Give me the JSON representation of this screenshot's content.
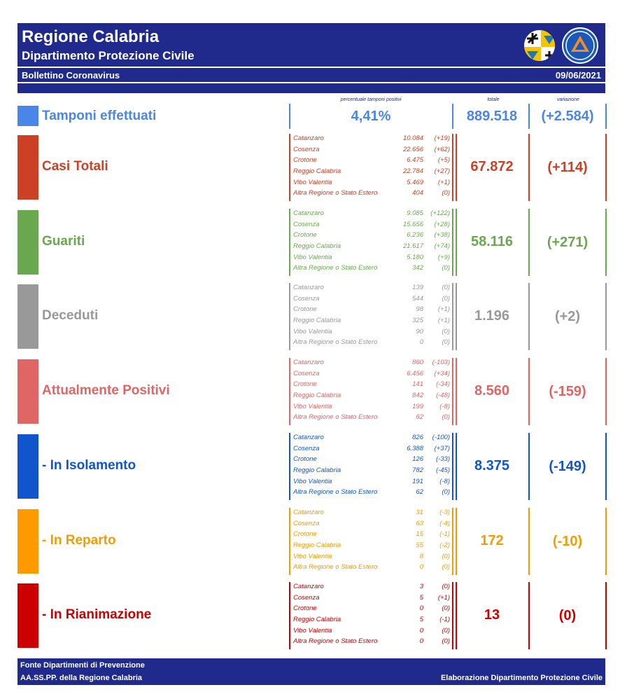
{
  "header": {
    "title": "Regione Calabria",
    "subtitle": "Dipartimento Protezione Civile",
    "bulletin": "Bollettino Coronavirus",
    "date": "09/06/2021"
  },
  "columns": {
    "percent": "percentuale tamponi positivi",
    "total": "totale",
    "variation": "variazione"
  },
  "tamponi": {
    "label": "Tamponi effettuati",
    "percent": "4,41%",
    "total": "889.518",
    "variation": "(+2.584)",
    "color": "#4a86e8"
  },
  "sections": [
    {
      "label": "Casi Totali",
      "total": "67.872",
      "variation": "(+114)",
      "color": "#cc4125",
      "swatch": "#cc4125",
      "rows": [
        {
          "p": "Catanzaro",
          "v": "10.084",
          "d": "(+19)"
        },
        {
          "p": "Cosenza",
          "v": "22.656",
          "d": "(+62)"
        },
        {
          "p": "Crotone",
          "v": "6.475",
          "d": "(+5)"
        },
        {
          "p": "Reggio Calabria",
          "v": "22.784",
          "d": "(+27)"
        },
        {
          "p": "Vibo Valentia",
          "v": "5.469",
          "d": "(+1)"
        },
        {
          "p": "Altra Regione o Stato Estero",
          "v": "404",
          "d": "(0)"
        }
      ]
    },
    {
      "label": "Guariti",
      "total": "58.116",
      "variation": "(+271)",
      "color": "#6aa84f",
      "swatch": "#6aa84f",
      "rows": [
        {
          "p": "Catanzaro",
          "v": "9.085",
          "d": "(+122)"
        },
        {
          "p": "Cosenza",
          "v": "15.656",
          "d": "(+28)"
        },
        {
          "p": "Crotone",
          "v": "6.236",
          "d": "(+38)"
        },
        {
          "p": "Reggio Calabria",
          "v": "21.617",
          "d": "(+74)"
        },
        {
          "p": "Vibo Valentia",
          "v": "5.180",
          "d": "(+9)"
        },
        {
          "p": "Altra Regione o Stato Estero",
          "v": "342",
          "d": "(0)"
        }
      ]
    },
    {
      "label": "Deceduti",
      "total": "1.196",
      "variation": "(+2)",
      "color": "#999999",
      "swatch": "#999999",
      "rows": [
        {
          "p": "Catanzaro",
          "v": "139",
          "d": "(0)"
        },
        {
          "p": "Cosenza",
          "v": "544",
          "d": "(0)"
        },
        {
          "p": "Crotone",
          "v": "98",
          "d": "(+1)"
        },
        {
          "p": "Reggio Calabria",
          "v": "325",
          "d": "(+1)"
        },
        {
          "p": "Vibo Valentia",
          "v": "90",
          "d": "(0)"
        },
        {
          "p": "Altra Regione o Stato Estero",
          "v": "0",
          "d": "(0)"
        }
      ]
    },
    {
      "label": "Attualmente Positivi",
      "total": "8.560",
      "variation": "(-159)",
      "color": "#e06666",
      "swatch": "#e06666",
      "rows": [
        {
          "p": "Catanzaro",
          "v": "860",
          "d": "(-103)"
        },
        {
          "p": "Cosenza",
          "v": "6.456",
          "d": "(+34)"
        },
        {
          "p": "Crotone",
          "v": "141",
          "d": "(-34)"
        },
        {
          "p": "Reggio Calabria",
          "v": "842",
          "d": "(-48)"
        },
        {
          "p": "Vibo Valentia",
          "v": "199",
          "d": "(-8)"
        },
        {
          "p": "Altra Regione o Stato Estero",
          "v": "62",
          "d": "(0)"
        }
      ]
    },
    {
      "label": " - In Isolamento",
      "total": "8.375",
      "variation": "(-149)",
      "color": "#1155cc",
      "swatch": "#1155cc",
      "rows": [
        {
          "p": "Catanzaro",
          "v": "826",
          "d": "(-100)"
        },
        {
          "p": "Cosenza",
          "v": "6.388",
          "d": "(+37)"
        },
        {
          "p": "Crotone",
          "v": "126",
          "d": "(-33)"
        },
        {
          "p": "Reggio Calabria",
          "v": "782",
          "d": "(-45)"
        },
        {
          "p": "Vibo Valentia",
          "v": "191",
          "d": "(-8)"
        },
        {
          "p": "Altra Regione o Stato Estero",
          "v": "62",
          "d": "(0)"
        }
      ]
    },
    {
      "label": " - In Reparto",
      "total": "172",
      "variation": "(-10)",
      "color": "#f49b00",
      "swatch": "#ff9900",
      "rows": [
        {
          "p": "Catanzaro",
          "v": "31",
          "d": "(-3)"
        },
        {
          "p": "Cosenza",
          "v": "63",
          "d": "(-4)"
        },
        {
          "p": "Crotone",
          "v": "15",
          "d": "(-1)"
        },
        {
          "p": "Reggio Calabria",
          "v": "55",
          "d": "(-2)"
        },
        {
          "p": "Vibo Valentia",
          "v": "8",
          "d": "(0)"
        },
        {
          "p": "Altra Regione o Stato Estero",
          "v": "0",
          "d": "(0)"
        }
      ]
    },
    {
      "label": " - In Rianimazione",
      "total": "13",
      "variation": "(0)",
      "color": "#cc0000",
      "swatch": "#cc0000",
      "rows": [
        {
          "p": "Catanzaro",
          "v": "3",
          "d": "(0)"
        },
        {
          "p": "Cosenza",
          "v": "5",
          "d": "(+1)"
        },
        {
          "p": "Crotone",
          "v": "0",
          "d": "(0)"
        },
        {
          "p": "Reggio Calabria",
          "v": "5",
          "d": "(-1)"
        },
        {
          "p": "Vibo Valentia",
          "v": "0",
          "d": "(0)"
        },
        {
          "p": "Altra Regione o Stato Estero",
          "v": "0",
          "d": "(0)"
        }
      ]
    }
  ],
  "footer": {
    "line1": "Fonte Dipartimenti di Prevenzione",
    "line2": "AA.SS.PP.  della Regione Calabria",
    "credit": "Elaborazione Dipartimento Protezione Civile"
  }
}
